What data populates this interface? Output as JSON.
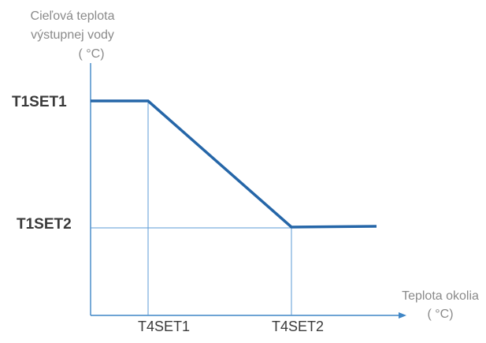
{
  "chart_data": {
    "type": "line",
    "y_axis_title_lines": [
      "Cieľová teplota",
      "výstupnej vody",
      "( °C)"
    ],
    "x_axis_title_lines": [
      "Teplota okolia",
      "( °C)"
    ],
    "y_ticks": [
      "T1SET1",
      "T1SET2"
    ],
    "x_ticks": [
      "T4SET1",
      "T4SET2"
    ],
    "series": [
      {
        "values": [
          {
            "x": "min",
            "y": "T1SET1"
          },
          {
            "x": "T4SET1",
            "y": "T1SET1"
          },
          {
            "x": "T4SET2",
            "y": "T1SET2"
          },
          {
            "x": "max",
            "y": "T1SET2"
          }
        ]
      }
    ],
    "reference_lines": {
      "vertical": [
        "T4SET1",
        "T4SET2"
      ],
      "horizontal": [
        "T1SET2"
      ]
    },
    "colors": {
      "series_line": "#2566a8",
      "axis_line": "#3f86c6",
      "reference_line": "#5b9bd5",
      "axis_title": "#8a8a8a",
      "tick_label": "#3a3a3a"
    }
  }
}
